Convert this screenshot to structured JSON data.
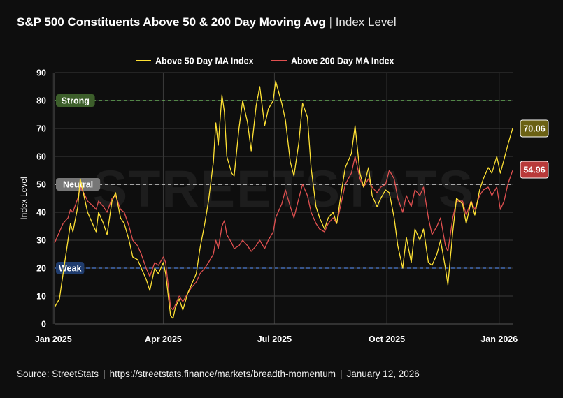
{
  "title": {
    "main": "S&P 500 Constituents Above 50 & 200 Day Moving Avg",
    "separator": "|",
    "sub": "Index Level"
  },
  "watermark": "STREETSTATS",
  "footer": {
    "source": "Source:  StreetStats",
    "separator": "|",
    "url": "https://streetstats.finance/markets/breadth-momentum",
    "date": "January 12, 2026"
  },
  "colors": {
    "background": "#0e0e0e",
    "grid": "#3a3a3a",
    "series50": "#ffe234",
    "series200": "#e05050",
    "strong": "#7ccd6a",
    "neutral": "#ffffff",
    "weak": "#4f7fd6",
    "strongBadge": "#3d5f2b",
    "neutralBadge": "#777777",
    "weakBadge": "#1f3c6e",
    "label50": "#6b6114",
    "label200": "#b83a3a"
  },
  "chart_data": {
    "type": "line",
    "ylabel": "Index Level",
    "ylim": [
      0,
      90
    ],
    "yticks": [
      0,
      10,
      20,
      30,
      40,
      50,
      60,
      70,
      80,
      90
    ],
    "xlim": [
      "2025-01-02",
      "2026-01-12"
    ],
    "xticks": [
      {
        "label": "Jan 2025",
        "date": "2025-01-01"
      },
      {
        "label": "Apr 2025",
        "date": "2025-04-01"
      },
      {
        "label": "Jul 2025",
        "date": "2025-07-01"
      },
      {
        "label": "Oct 2025",
        "date": "2025-10-01"
      },
      {
        "label": "Jan 2026",
        "date": "2026-01-01"
      }
    ],
    "grid": true,
    "legend": "top-center",
    "reference_lines": [
      {
        "label": "Strong",
        "value": 80
      },
      {
        "label": "Neutral",
        "value": 50
      },
      {
        "label": "Weak",
        "value": 20
      }
    ],
    "last_values": {
      "above50": "70.06",
      "above200": "54.96"
    },
    "series": [
      {
        "name": "Above 50 Day MA Index",
        "key": "above50",
        "points": [
          [
            "2025-01-02",
            6
          ],
          [
            "2025-01-06",
            9
          ],
          [
            "2025-01-09",
            18
          ],
          [
            "2025-01-13",
            30
          ],
          [
            "2025-01-15",
            36
          ],
          [
            "2025-01-17",
            33
          ],
          [
            "2025-01-21",
            42
          ],
          [
            "2025-01-23",
            52
          ],
          [
            "2025-01-27",
            44
          ],
          [
            "2025-01-29",
            40
          ],
          [
            "2025-02-03",
            35
          ],
          [
            "2025-02-05",
            33
          ],
          [
            "2025-02-07",
            40
          ],
          [
            "2025-02-11",
            36
          ],
          [
            "2025-02-14",
            32
          ],
          [
            "2025-02-18",
            44
          ],
          [
            "2025-02-21",
            47
          ],
          [
            "2025-02-25",
            38
          ],
          [
            "2025-02-28",
            36
          ],
          [
            "2025-03-04",
            30
          ],
          [
            "2025-03-07",
            24
          ],
          [
            "2025-03-11",
            23
          ],
          [
            "2025-03-14",
            20
          ],
          [
            "2025-03-18",
            16
          ],
          [
            "2025-03-21",
            12
          ],
          [
            "2025-03-25",
            20
          ],
          [
            "2025-03-28",
            18
          ],
          [
            "2025-04-01",
            22
          ],
          [
            "2025-04-03",
            18
          ],
          [
            "2025-04-07",
            3
          ],
          [
            "2025-04-09",
            2
          ],
          [
            "2025-04-11",
            6
          ],
          [
            "2025-04-14",
            9
          ],
          [
            "2025-04-17",
            5
          ],
          [
            "2025-04-21",
            11
          ],
          [
            "2025-04-24",
            14
          ],
          [
            "2025-04-28",
            18
          ],
          [
            "2025-05-01",
            27
          ],
          [
            "2025-05-05",
            36
          ],
          [
            "2025-05-08",
            44
          ],
          [
            "2025-05-12",
            58
          ],
          [
            "2025-05-14",
            72
          ],
          [
            "2025-05-16",
            64
          ],
          [
            "2025-05-19",
            82
          ],
          [
            "2025-05-21",
            76
          ],
          [
            "2025-05-23",
            60
          ],
          [
            "2025-05-27",
            54
          ],
          [
            "2025-05-29",
            53
          ],
          [
            "2025-06-02",
            70
          ],
          [
            "2025-06-05",
            80
          ],
          [
            "2025-06-09",
            72
          ],
          [
            "2025-06-12",
            62
          ],
          [
            "2025-06-16",
            78
          ],
          [
            "2025-06-19",
            85
          ],
          [
            "2025-06-23",
            71
          ],
          [
            "2025-06-26",
            77
          ],
          [
            "2025-06-30",
            80
          ],
          [
            "2025-07-02",
            87
          ],
          [
            "2025-07-07",
            79
          ],
          [
            "2025-07-10",
            73
          ],
          [
            "2025-07-14",
            58
          ],
          [
            "2025-07-17",
            53
          ],
          [
            "2025-07-21",
            65
          ],
          [
            "2025-07-24",
            79
          ],
          [
            "2025-07-28",
            74
          ],
          [
            "2025-07-31",
            56
          ],
          [
            "2025-08-04",
            42
          ],
          [
            "2025-08-07",
            38
          ],
          [
            "2025-08-11",
            34
          ],
          [
            "2025-08-14",
            38
          ],
          [
            "2025-08-18",
            40
          ],
          [
            "2025-08-21",
            36
          ],
          [
            "2025-08-25",
            48
          ],
          [
            "2025-08-28",
            56
          ],
          [
            "2025-09-02",
            61
          ],
          [
            "2025-09-05",
            71
          ],
          [
            "2025-09-09",
            54
          ],
          [
            "2025-09-12",
            49
          ],
          [
            "2025-09-16",
            56
          ],
          [
            "2025-09-19",
            46
          ],
          [
            "2025-09-23",
            42
          ],
          [
            "2025-09-26",
            45
          ],
          [
            "2025-09-30",
            48
          ],
          [
            "2025-10-03",
            47
          ],
          [
            "2025-10-07",
            38
          ],
          [
            "2025-10-10",
            28
          ],
          [
            "2025-10-14",
            20
          ],
          [
            "2025-10-17",
            31
          ],
          [
            "2025-10-21",
            22
          ],
          [
            "2025-10-24",
            34
          ],
          [
            "2025-10-28",
            30
          ],
          [
            "2025-10-31",
            34
          ],
          [
            "2025-11-04",
            22
          ],
          [
            "2025-11-07",
            21
          ],
          [
            "2025-11-11",
            25
          ],
          [
            "2025-11-14",
            30
          ],
          [
            "2025-11-18",
            20
          ],
          [
            "2025-11-20",
            14
          ],
          [
            "2025-11-24",
            33
          ],
          [
            "2025-11-27",
            45
          ],
          [
            "2025-12-02",
            43
          ],
          [
            "2025-12-05",
            36
          ],
          [
            "2025-12-09",
            44
          ],
          [
            "2025-12-12",
            39
          ],
          [
            "2025-12-16",
            48
          ],
          [
            "2025-12-19",
            52
          ],
          [
            "2025-12-23",
            56
          ],
          [
            "2025-12-26",
            54
          ],
          [
            "2025-12-30",
            60
          ],
          [
            "2026-01-02",
            54
          ],
          [
            "2026-01-05",
            59
          ],
          [
            "2026-01-08",
            64
          ],
          [
            "2026-01-12",
            70.06
          ]
        ]
      },
      {
        "name": "Above 200 Day MA Index",
        "key": "above200",
        "points": [
          [
            "2025-01-02",
            29
          ],
          [
            "2025-01-06",
            33
          ],
          [
            "2025-01-09",
            36
          ],
          [
            "2025-01-13",
            38
          ],
          [
            "2025-01-15",
            41
          ],
          [
            "2025-01-17",
            40
          ],
          [
            "2025-01-21",
            45
          ],
          [
            "2025-01-23",
            49
          ],
          [
            "2025-01-27",
            46
          ],
          [
            "2025-01-29",
            44
          ],
          [
            "2025-02-03",
            42
          ],
          [
            "2025-02-05",
            41
          ],
          [
            "2025-02-07",
            44
          ],
          [
            "2025-02-11",
            42
          ],
          [
            "2025-02-14",
            40
          ],
          [
            "2025-02-18",
            45
          ],
          [
            "2025-02-21",
            46
          ],
          [
            "2025-02-25",
            41
          ],
          [
            "2025-02-28",
            40
          ],
          [
            "2025-03-04",
            35
          ],
          [
            "2025-03-07",
            30
          ],
          [
            "2025-03-11",
            28
          ],
          [
            "2025-03-14",
            25
          ],
          [
            "2025-03-18",
            20
          ],
          [
            "2025-03-21",
            17
          ],
          [
            "2025-03-25",
            22
          ],
          [
            "2025-03-28",
            21
          ],
          [
            "2025-04-01",
            24
          ],
          [
            "2025-04-03",
            22
          ],
          [
            "2025-04-07",
            6
          ],
          [
            "2025-04-09",
            5
          ],
          [
            "2025-04-11",
            7
          ],
          [
            "2025-04-14",
            10
          ],
          [
            "2025-04-17",
            8
          ],
          [
            "2025-04-21",
            11
          ],
          [
            "2025-04-24",
            13
          ],
          [
            "2025-04-28",
            15
          ],
          [
            "2025-05-01",
            18
          ],
          [
            "2025-05-05",
            20
          ],
          [
            "2025-05-08",
            22
          ],
          [
            "2025-05-12",
            25
          ],
          [
            "2025-05-14",
            30
          ],
          [
            "2025-05-16",
            27
          ],
          [
            "2025-05-19",
            35
          ],
          [
            "2025-05-21",
            37
          ],
          [
            "2025-05-23",
            32
          ],
          [
            "2025-05-27",
            29
          ],
          [
            "2025-05-29",
            27
          ],
          [
            "2025-06-02",
            28
          ],
          [
            "2025-06-05",
            30
          ],
          [
            "2025-06-09",
            28
          ],
          [
            "2025-06-12",
            26
          ],
          [
            "2025-06-16",
            28
          ],
          [
            "2025-06-19",
            30
          ],
          [
            "2025-06-23",
            27
          ],
          [
            "2025-06-26",
            30
          ],
          [
            "2025-06-30",
            33
          ],
          [
            "2025-07-02",
            38
          ],
          [
            "2025-07-07",
            43
          ],
          [
            "2025-07-10",
            48
          ],
          [
            "2025-07-14",
            42
          ],
          [
            "2025-07-17",
            38
          ],
          [
            "2025-07-21",
            45
          ],
          [
            "2025-07-24",
            50
          ],
          [
            "2025-07-28",
            46
          ],
          [
            "2025-07-31",
            40
          ],
          [
            "2025-08-04",
            36
          ],
          [
            "2025-08-07",
            34
          ],
          [
            "2025-08-11",
            33
          ],
          [
            "2025-08-14",
            36
          ],
          [
            "2025-08-18",
            38
          ],
          [
            "2025-08-21",
            36
          ],
          [
            "2025-08-25",
            44
          ],
          [
            "2025-08-28",
            50
          ],
          [
            "2025-09-02",
            54
          ],
          [
            "2025-09-05",
            60
          ],
          [
            "2025-09-09",
            52
          ],
          [
            "2025-09-12",
            49
          ],
          [
            "2025-09-16",
            52
          ],
          [
            "2025-09-19",
            49
          ],
          [
            "2025-09-23",
            47
          ],
          [
            "2025-09-26",
            49
          ],
          [
            "2025-09-30",
            50
          ],
          [
            "2025-10-03",
            55
          ],
          [
            "2025-10-07",
            52
          ],
          [
            "2025-10-10",
            45
          ],
          [
            "2025-10-14",
            40
          ],
          [
            "2025-10-17",
            46
          ],
          [
            "2025-10-21",
            42
          ],
          [
            "2025-10-24",
            48
          ],
          [
            "2025-10-28",
            46
          ],
          [
            "2025-10-31",
            49
          ],
          [
            "2025-11-04",
            38
          ],
          [
            "2025-11-07",
            32
          ],
          [
            "2025-11-11",
            35
          ],
          [
            "2025-11-14",
            38
          ],
          [
            "2025-11-18",
            28
          ],
          [
            "2025-11-20",
            26
          ],
          [
            "2025-11-24",
            38
          ],
          [
            "2025-11-27",
            44
          ],
          [
            "2025-12-02",
            44
          ],
          [
            "2025-12-05",
            39
          ],
          [
            "2025-12-09",
            44
          ],
          [
            "2025-12-12",
            41
          ],
          [
            "2025-12-16",
            46
          ],
          [
            "2025-12-19",
            48
          ],
          [
            "2025-12-23",
            49
          ],
          [
            "2025-12-26",
            46
          ],
          [
            "2025-12-30",
            49
          ],
          [
            "2026-01-02",
            41
          ],
          [
            "2026-01-05",
            44
          ],
          [
            "2026-01-08",
            50
          ],
          [
            "2026-01-12",
            54.96
          ]
        ]
      }
    ]
  }
}
